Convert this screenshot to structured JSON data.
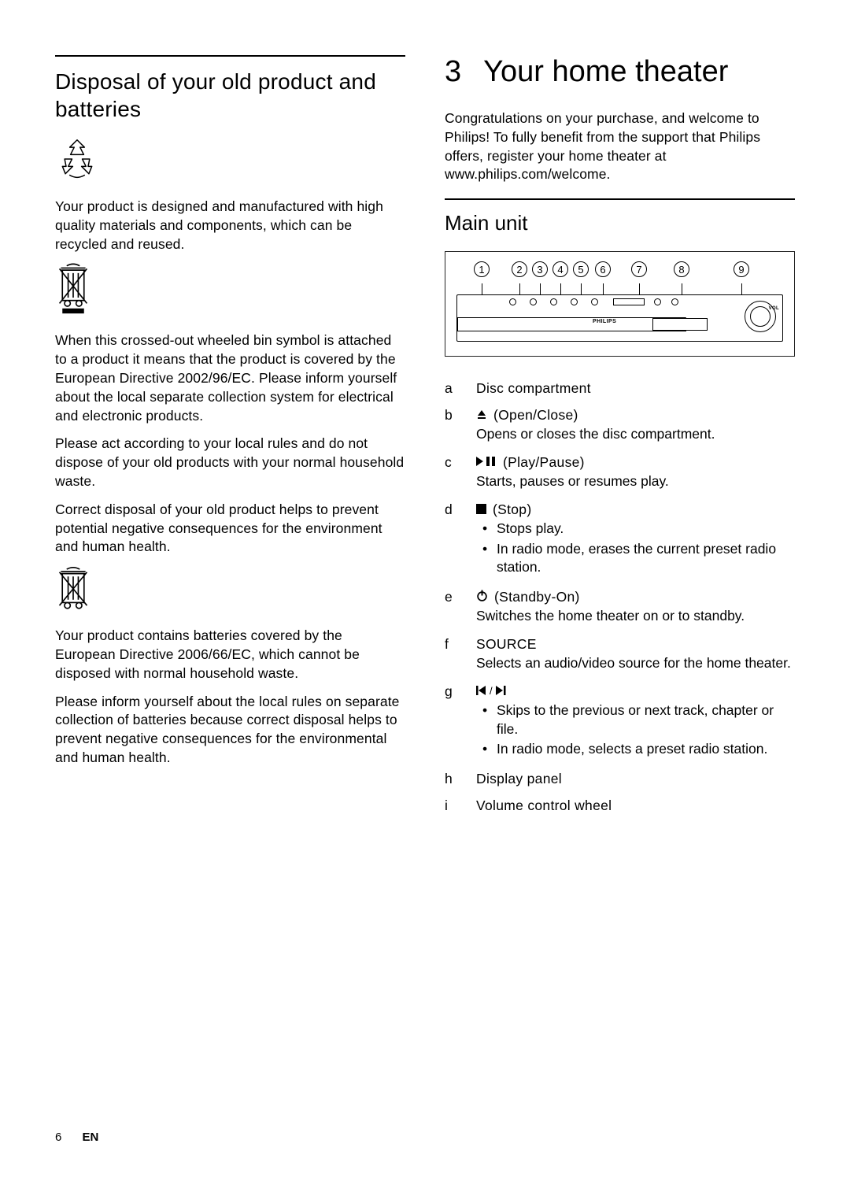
{
  "page": {
    "number": "6",
    "lang": "EN"
  },
  "left": {
    "heading": "Disposal of your old product and batteries",
    "p1": "Your product is designed and manufactured with high quality materials and components, which can be recycled and reused.",
    "p2": "When this crossed-out wheeled bin symbol is attached to a product it means that the product is covered by the European Directive 2002/96/EC. Please inform yourself about the local separate collection system for electrical and electronic products.",
    "p3": "Please act according to your local rules and do not dispose of your old products with your normal household waste.",
    "p4": "Correct disposal of your old product helps to prevent potential negative consequences for the environment and human health.",
    "p5": "Your product contains batteries covered by the European Directive 2006/66/EC, which cannot be disposed with normal household waste.",
    "p6": "Please inform yourself about the local rules on separate collection of batteries because correct disposal helps to prevent negative consequences for the environmental and human health."
  },
  "right": {
    "chapter_num": "3",
    "chapter_title": "Your home theater",
    "intro": "Congratulations on your purchase, and welcome to Philips! To fully benefit from the support that Philips offers, register your home theater at www.philips.com/welcome.",
    "sub_heading": "Main unit",
    "device_brand": "PHILIPS",
    "device_vol_label": "VOL",
    "callouts": [
      "1",
      "2",
      "3",
      "4",
      "5",
      "6",
      "7",
      "8",
      "9"
    ],
    "items": [
      {
        "marker": "a",
        "title": "Disc compartment"
      },
      {
        "marker": "b",
        "symbol": "eject",
        "title": "(Open/Close)",
        "desc": "Opens or closes the disc compartment."
      },
      {
        "marker": "c",
        "symbol": "playpause",
        "title": "(Play/Pause)",
        "desc": "Starts, pauses or resumes play."
      },
      {
        "marker": "d",
        "symbol": "stop",
        "title": "(Stop)",
        "bullets": [
          "Stops play.",
          "In radio mode, erases the current preset radio station."
        ]
      },
      {
        "marker": "e",
        "symbol": "standby",
        "title": "(Standby-On)",
        "desc": "Switches the home theater on or to standby."
      },
      {
        "marker": "f",
        "title": "SOURCE",
        "desc": "Selects an audio/video source for the home theater."
      },
      {
        "marker": "g",
        "symbol": "prevnext",
        "bullets": [
          "Skips to the previous or next track, chapter or file.",
          "In radio mode, selects a preset radio station."
        ]
      },
      {
        "marker": "h",
        "title": "Display panel"
      },
      {
        "marker": "i",
        "title": "Volume control wheel"
      }
    ]
  }
}
